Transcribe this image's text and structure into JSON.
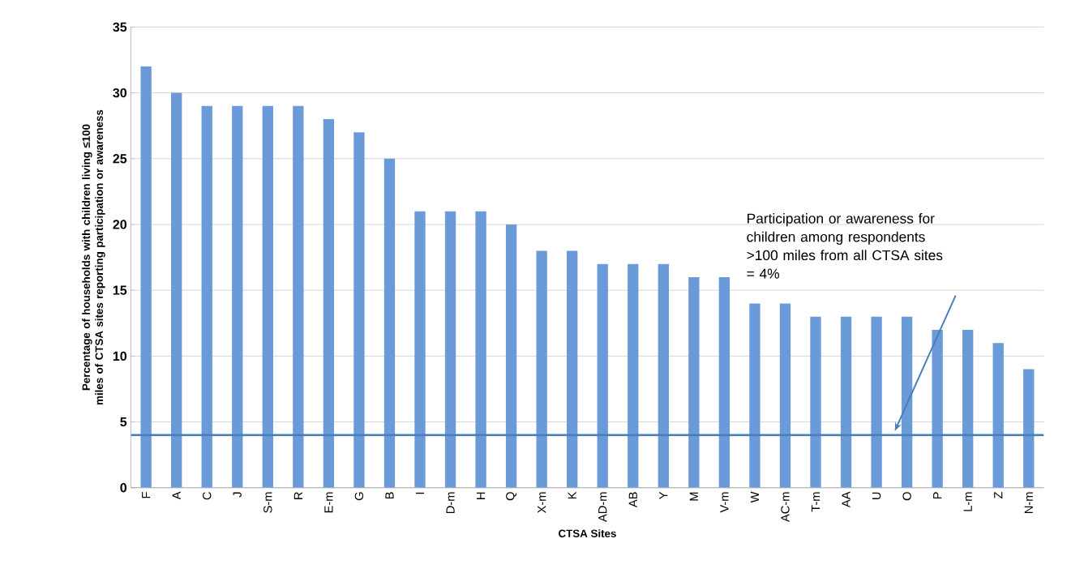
{
  "chart_data": {
    "type": "bar",
    "xlabel": "CTSA Sites",
    "ylabel": "Percentage of households with children living ≤100 miles of CTSA sites reporting participation or awareness",
    "categories": [
      "F",
      "A",
      "C",
      "J",
      "S-m",
      "R",
      "E-m",
      "G",
      "B",
      "I",
      "D-m",
      "H",
      "Q",
      "X-m",
      "K",
      "AD-m",
      "AB",
      "Y",
      "M",
      "V-m",
      "W",
      "AC-m",
      "T-m",
      "AA",
      "U",
      "O",
      "P",
      "L-m",
      "Z",
      "N-m"
    ],
    "values": [
      32,
      30,
      29,
      29,
      29,
      29,
      28,
      27,
      25,
      21,
      21,
      21,
      20,
      18,
      18,
      17,
      17,
      17,
      16,
      16,
      14,
      14,
      13,
      13,
      13,
      13,
      12,
      12,
      11,
      9
    ],
    "color": "#6a9bd8",
    "ylim": [
      0,
      35
    ],
    "yticks": [
      0,
      5,
      10,
      15,
      20,
      25,
      30,
      35
    ],
    "grid": "y",
    "ref_lines": [
      {
        "axis": "y",
        "value": 4,
        "color": "#4a7ebb"
      }
    ],
    "annotations": [
      "Participation or awareness for children among respondents >100 miles from all CTSA sites = 4%"
    ]
  }
}
